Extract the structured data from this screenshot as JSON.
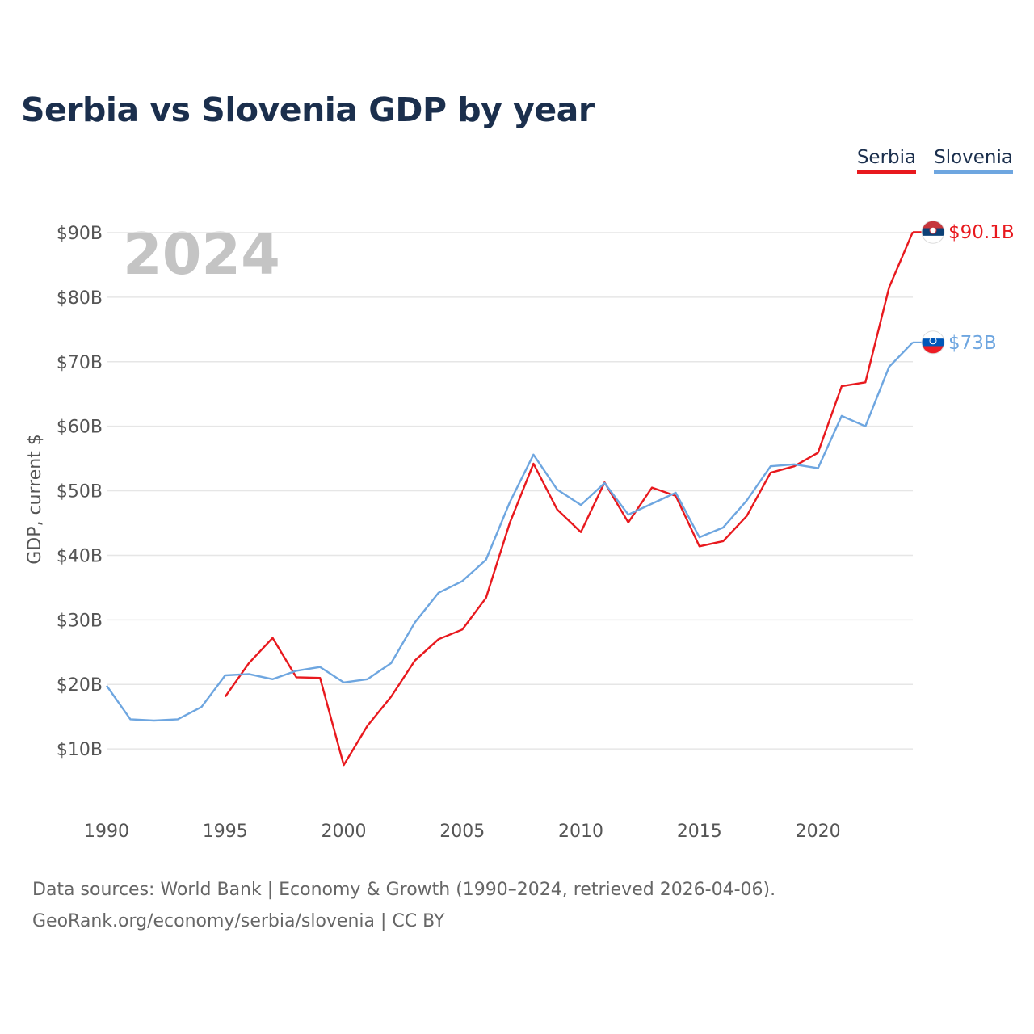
{
  "title": "Serbia vs Slovenia GDP by year",
  "legend": [
    {
      "label": "Serbia",
      "color": "#e8191e"
    },
    {
      "label": "Slovenia",
      "color": "#6ea6e0"
    }
  ],
  "footer": {
    "line1": "Data sources: World Bank | Economy & Growth (1990–2024, retrieved 2026-04-06).",
    "line2": "GeoRank.org/economy/serbia/slovenia | CC BY"
  },
  "chart_data": {
    "type": "line",
    "title": "Serbia vs Slovenia GDP by year",
    "ylabel": "GDP, current $",
    "xlabel": "",
    "year_watermark": "2024",
    "xlim": [
      1990,
      2024
    ],
    "ylim": [
      0,
      90
    ],
    "x_ticks": [
      1990,
      1995,
      2000,
      2005,
      2010,
      2015,
      2020
    ],
    "x_tick_labels": [
      "1990",
      "1995",
      "2000",
      "2005",
      "2010",
      "2015",
      "2020"
    ],
    "y_ticks": [
      10,
      20,
      30,
      40,
      50,
      60,
      70,
      80,
      90
    ],
    "y_tick_labels": [
      "$10B",
      "$20B",
      "$30B",
      "$40B",
      "$50B",
      "$60B",
      "$70B",
      "$80B",
      "$90B"
    ],
    "grid": true,
    "series": [
      {
        "name": "Serbia",
        "color": "#e8191e",
        "end_label": "$90.1B",
        "x": [
          1995,
          1996,
          1997,
          1998,
          1999,
          2000,
          2001,
          2002,
          2003,
          2004,
          2005,
          2006,
          2007,
          2008,
          2009,
          2010,
          2011,
          2012,
          2013,
          2014,
          2015,
          2016,
          2017,
          2018,
          2019,
          2020,
          2021,
          2022,
          2023,
          2024
        ],
        "values": [
          18.1,
          23.3,
          27.2,
          21.1,
          21.0,
          7.5,
          13.6,
          18.1,
          23.7,
          27.0,
          28.5,
          33.4,
          45.0,
          54.2,
          47.1,
          43.6,
          51.3,
          45.1,
          50.5,
          49.2,
          41.4,
          42.2,
          46.1,
          52.8,
          53.8,
          55.9,
          66.2,
          66.8,
          81.5,
          90.1
        ]
      },
      {
        "name": "Slovenia",
        "color": "#6ea6e0",
        "end_label": "$73B",
        "x": [
          1990,
          1991,
          1992,
          1993,
          1994,
          1995,
          1996,
          1997,
          1998,
          1999,
          2000,
          2001,
          2002,
          2003,
          2004,
          2005,
          2006,
          2007,
          2008,
          2009,
          2010,
          2011,
          2012,
          2013,
          2014,
          2015,
          2016,
          2017,
          2018,
          2019,
          2020,
          2021,
          2022,
          2023,
          2024
        ],
        "values": [
          19.8,
          14.6,
          14.4,
          14.6,
          16.5,
          21.4,
          21.6,
          20.8,
          22.1,
          22.7,
          20.3,
          20.8,
          23.3,
          29.6,
          34.2,
          36.0,
          39.3,
          48.2,
          55.6,
          50.2,
          47.8,
          51.2,
          46.3,
          48.0,
          49.7,
          42.8,
          44.3,
          48.5,
          53.8,
          54.1,
          53.5,
          61.6,
          60.0,
          69.2,
          73.0
        ]
      }
    ]
  }
}
